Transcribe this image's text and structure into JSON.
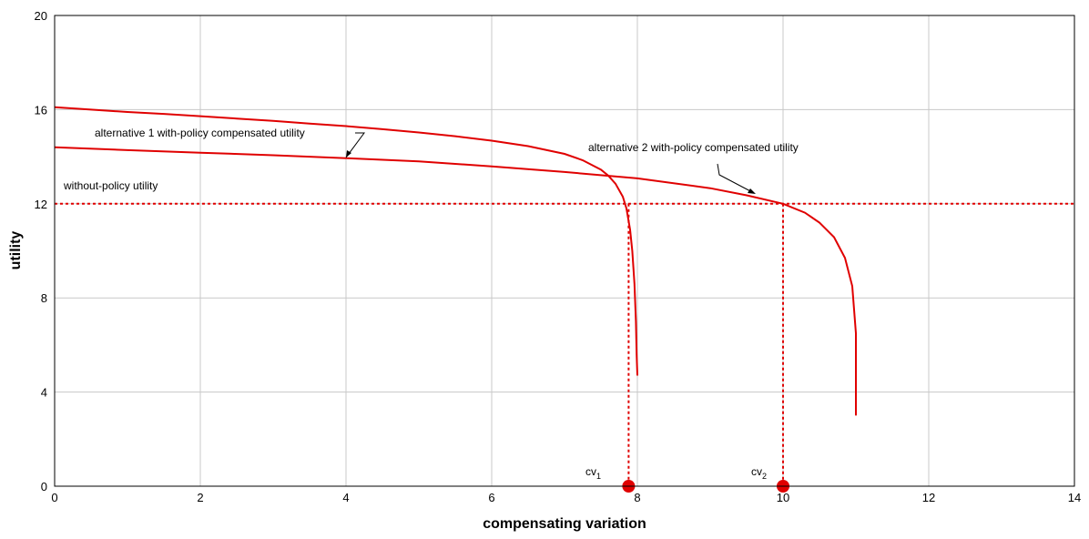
{
  "chart_data": {
    "type": "line",
    "xlabel": "compensating variation",
    "ylabel": "utility",
    "xlim": [
      0,
      14
    ],
    "ylim": [
      0,
      20
    ],
    "xticks": [
      0,
      2,
      4,
      6,
      8,
      10,
      12,
      14
    ],
    "yticks": [
      0,
      4,
      8,
      12,
      16,
      20
    ],
    "grid": true,
    "colors": {
      "curve": "#e00000",
      "grid": "#c8c8c8",
      "axis": "#000000"
    },
    "series": [
      {
        "points": [
          [
            0,
            16.1
          ],
          [
            0.5,
            16.0
          ],
          [
            1,
            15.9
          ],
          [
            1.5,
            15.82
          ],
          [
            2,
            15.72
          ],
          [
            2.5,
            15.62
          ],
          [
            3,
            15.52
          ],
          [
            3.5,
            15.41
          ],
          [
            4,
            15.3
          ],
          [
            4.5,
            15.17
          ],
          [
            5,
            15.03
          ],
          [
            5.5,
            14.87
          ],
          [
            6,
            14.68
          ],
          [
            6.5,
            14.45
          ],
          [
            7,
            14.12
          ],
          [
            7.25,
            13.85
          ],
          [
            7.5,
            13.45
          ],
          [
            7.6,
            13.2
          ],
          [
            7.7,
            12.85
          ],
          [
            7.8,
            12.3
          ],
          [
            7.85,
            11.8
          ],
          [
            7.9,
            10.9
          ],
          [
            7.93,
            10.0
          ],
          [
            7.96,
            8.6
          ],
          [
            7.98,
            7.0
          ],
          [
            7.99,
            5.6
          ],
          [
            8.0,
            4.7
          ]
        ]
      },
      {
        "points": [
          [
            0,
            14.4
          ],
          [
            1,
            14.28
          ],
          [
            2,
            14.17
          ],
          [
            3,
            14.06
          ],
          [
            4,
            13.94
          ],
          [
            5,
            13.8
          ],
          [
            6,
            13.59
          ],
          [
            7,
            13.35
          ],
          [
            8,
            13.08
          ],
          [
            9,
            12.66
          ],
          [
            9.5,
            12.36
          ],
          [
            10,
            12.0
          ],
          [
            10.3,
            11.62
          ],
          [
            10.5,
            11.2
          ],
          [
            10.7,
            10.58
          ],
          [
            10.85,
            9.7
          ],
          [
            10.95,
            8.5
          ],
          [
            11.0,
            6.5
          ],
          [
            11.0,
            5.0
          ],
          [
            11.0,
            3.0
          ]
        ]
      }
    ],
    "reference_lines": {
      "without_policy_utility": 12,
      "cv_values": [
        7.88,
        10.0
      ]
    },
    "annotations": {
      "alt1_label": "alternative 1 with-policy compensated utility",
      "alt2_label": "alternative 2 with-policy compensated utility",
      "without_policy_label": "without-policy utility",
      "cv1_base": "cv",
      "cv1_sub": "1",
      "cv2_base": "cv",
      "cv2_sub": "2"
    }
  }
}
